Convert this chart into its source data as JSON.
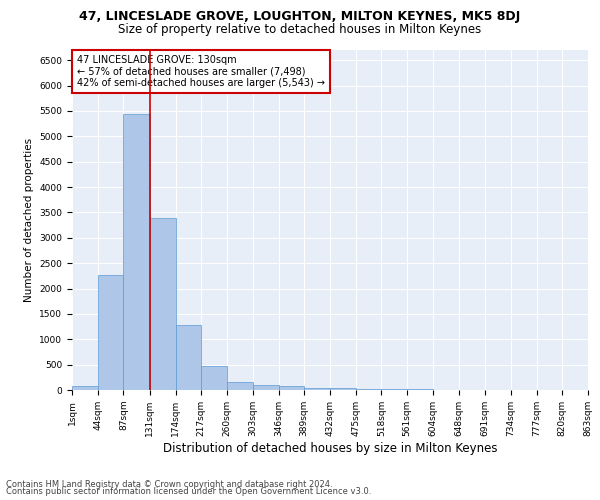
{
  "title1": "47, LINCESLADE GROVE, LOUGHTON, MILTON KEYNES, MK5 8DJ",
  "title2": "Size of property relative to detached houses in Milton Keynes",
  "xlabel": "Distribution of detached houses by size in Milton Keynes",
  "ylabel": "Number of detached properties",
  "footer1": "Contains HM Land Registry data © Crown copyright and database right 2024.",
  "footer2": "Contains public sector information licensed under the Open Government Licence v3.0.",
  "annotation_line1": "47 LINCESLADE GROVE: 130sqm",
  "annotation_line2": "← 57% of detached houses are smaller (7,498)",
  "annotation_line3": "42% of semi-detached houses are larger (5,543) →",
  "property_size": 130,
  "bar_edges": [
    1,
    44,
    87,
    131,
    174,
    217,
    260,
    303,
    346,
    389,
    432,
    475,
    518,
    561,
    604,
    648,
    691,
    734,
    777,
    820,
    863
  ],
  "bar_values": [
    70,
    2270,
    5430,
    3380,
    1290,
    480,
    165,
    100,
    75,
    45,
    30,
    20,
    15,
    10,
    8,
    5,
    4,
    3,
    2,
    1
  ],
  "bar_color": "#aec6e8",
  "bar_edge_color": "#5b9bd5",
  "vline_color": "#cc0000",
  "vline_x": 131,
  "ylim": [
    0,
    6700
  ],
  "yticks": [
    0,
    500,
    1000,
    1500,
    2000,
    2500,
    3000,
    3500,
    4000,
    4500,
    5000,
    5500,
    6000,
    6500
  ],
  "bg_color": "#e8eef7",
  "annotation_box_color": "#cc0000",
  "title1_fontsize": 9,
  "title2_fontsize": 8.5,
  "xlabel_fontsize": 8.5,
  "ylabel_fontsize": 7.5,
  "tick_fontsize": 6.5,
  "footer_fontsize": 6
}
